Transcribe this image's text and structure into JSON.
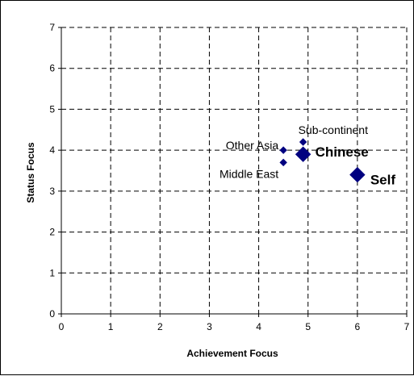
{
  "chart_data": {
    "type": "scatter",
    "title": "",
    "xlabel": "Achievement Focus",
    "ylabel": "Status Focus",
    "xlim": [
      0,
      7
    ],
    "ylim": [
      0,
      7
    ],
    "x_ticks": [
      "0",
      "1",
      "2",
      "3",
      "4",
      "5",
      "6",
      "7"
    ],
    "y_ticks": [
      "0",
      "1",
      "2",
      "3",
      "4",
      "5",
      "6",
      "7"
    ],
    "grid": "dashed",
    "legend": "none",
    "marker_color": "#000080",
    "points": [
      {
        "label": "Other Asia",
        "x": 4.5,
        "y": 4.0,
        "size": "small",
        "emphasis": false
      },
      {
        "label": "Sub-continent",
        "x": 4.9,
        "y": 4.2,
        "size": "small",
        "emphasis": false
      },
      {
        "label": "Middle East",
        "x": 4.5,
        "y": 3.7,
        "size": "small",
        "emphasis": false
      },
      {
        "label": "Chinese",
        "x": 4.9,
        "y": 3.9,
        "size": "large",
        "emphasis": true
      },
      {
        "label": "Self",
        "x": 6.0,
        "y": 3.4,
        "size": "large",
        "emphasis": true
      }
    ]
  }
}
